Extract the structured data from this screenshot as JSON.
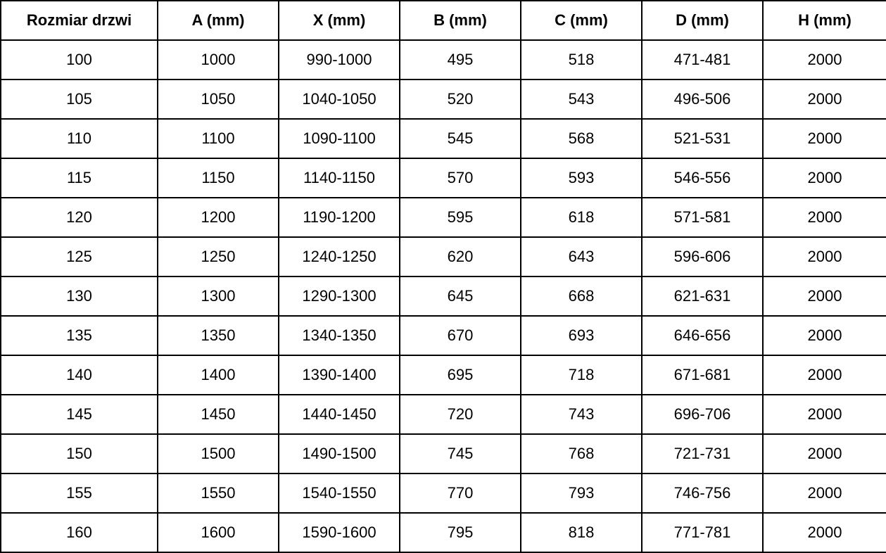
{
  "table": {
    "name": "door-size-specification",
    "columns": [
      "Rozmiar drzwi",
      "A (mm)",
      "X (mm)",
      "B (mm)",
      "C (mm)",
      "D (mm)",
      "H (mm)"
    ],
    "rows": [
      [
        "100",
        "1000",
        "990-1000",
        "495",
        "518",
        "471-481",
        "2000"
      ],
      [
        "105",
        "1050",
        "1040-1050",
        "520",
        "543",
        "496-506",
        "2000"
      ],
      [
        "110",
        "1100",
        "1090-1100",
        "545",
        "568",
        "521-531",
        "2000"
      ],
      [
        "115",
        "1150",
        "1140-1150",
        "570",
        "593",
        "546-556",
        "2000"
      ],
      [
        "120",
        "1200",
        "1190-1200",
        "595",
        "618",
        "571-581",
        "2000"
      ],
      [
        "125",
        "1250",
        "1240-1250",
        "620",
        "643",
        "596-606",
        "2000"
      ],
      [
        "130",
        "1300",
        "1290-1300",
        "645",
        "668",
        "621-631",
        "2000"
      ],
      [
        "135",
        "1350",
        "1340-1350",
        "670",
        "693",
        "646-656",
        "2000"
      ],
      [
        "140",
        "1400",
        "1390-1400",
        "695",
        "718",
        "671-681",
        "2000"
      ],
      [
        "145",
        "1450",
        "1440-1450",
        "720",
        "743",
        "696-706",
        "2000"
      ],
      [
        "150",
        "1500",
        "1490-1500",
        "745",
        "768",
        "721-731",
        "2000"
      ],
      [
        "155",
        "1550",
        "1540-1550",
        "770",
        "793",
        "746-756",
        "2000"
      ],
      [
        "160",
        "1600",
        "1590-1600",
        "795",
        "818",
        "771-781",
        "2000"
      ]
    ]
  },
  "colors": {
    "border": "#000000",
    "text": "#000000",
    "background": "#ffffff"
  },
  "chart_data": {
    "type": "table",
    "title": "",
    "columns": [
      "Rozmiar drzwi",
      "A (mm)",
      "X (mm)",
      "B (mm)",
      "C (mm)",
      "D (mm)",
      "H (mm)"
    ],
    "rows": [
      [
        "100",
        "1000",
        "990-1000",
        "495",
        "518",
        "471-481",
        "2000"
      ],
      [
        "105",
        "1050",
        "1040-1050",
        "520",
        "543",
        "496-506",
        "2000"
      ],
      [
        "110",
        "1100",
        "1090-1100",
        "545",
        "568",
        "521-531",
        "2000"
      ],
      [
        "115",
        "1150",
        "1140-1150",
        "570",
        "593",
        "546-556",
        "2000"
      ],
      [
        "120",
        "1200",
        "1190-1200",
        "595",
        "618",
        "571-581",
        "2000"
      ],
      [
        "125",
        "1250",
        "1240-1250",
        "620",
        "643",
        "596-606",
        "2000"
      ],
      [
        "130",
        "1300",
        "1290-1300",
        "645",
        "668",
        "621-631",
        "2000"
      ],
      [
        "135",
        "1350",
        "1340-1350",
        "670",
        "693",
        "646-656",
        "2000"
      ],
      [
        "140",
        "1400",
        "1390-1400",
        "695",
        "718",
        "671-681",
        "2000"
      ],
      [
        "145",
        "1450",
        "1440-1450",
        "720",
        "743",
        "696-706",
        "2000"
      ],
      [
        "150",
        "1500",
        "1490-1500",
        "745",
        "768",
        "721-731",
        "2000"
      ],
      [
        "155",
        "1550",
        "1540-1550",
        "770",
        "793",
        "746-756",
        "2000"
      ],
      [
        "160",
        "1600",
        "1590-1600",
        "795",
        "818",
        "771-781",
        "2000"
      ]
    ],
    "layout_hints": {
      "header_bold": true,
      "cell_alignment": "center",
      "grid": "all-borders",
      "first_column_wider": true
    }
  }
}
